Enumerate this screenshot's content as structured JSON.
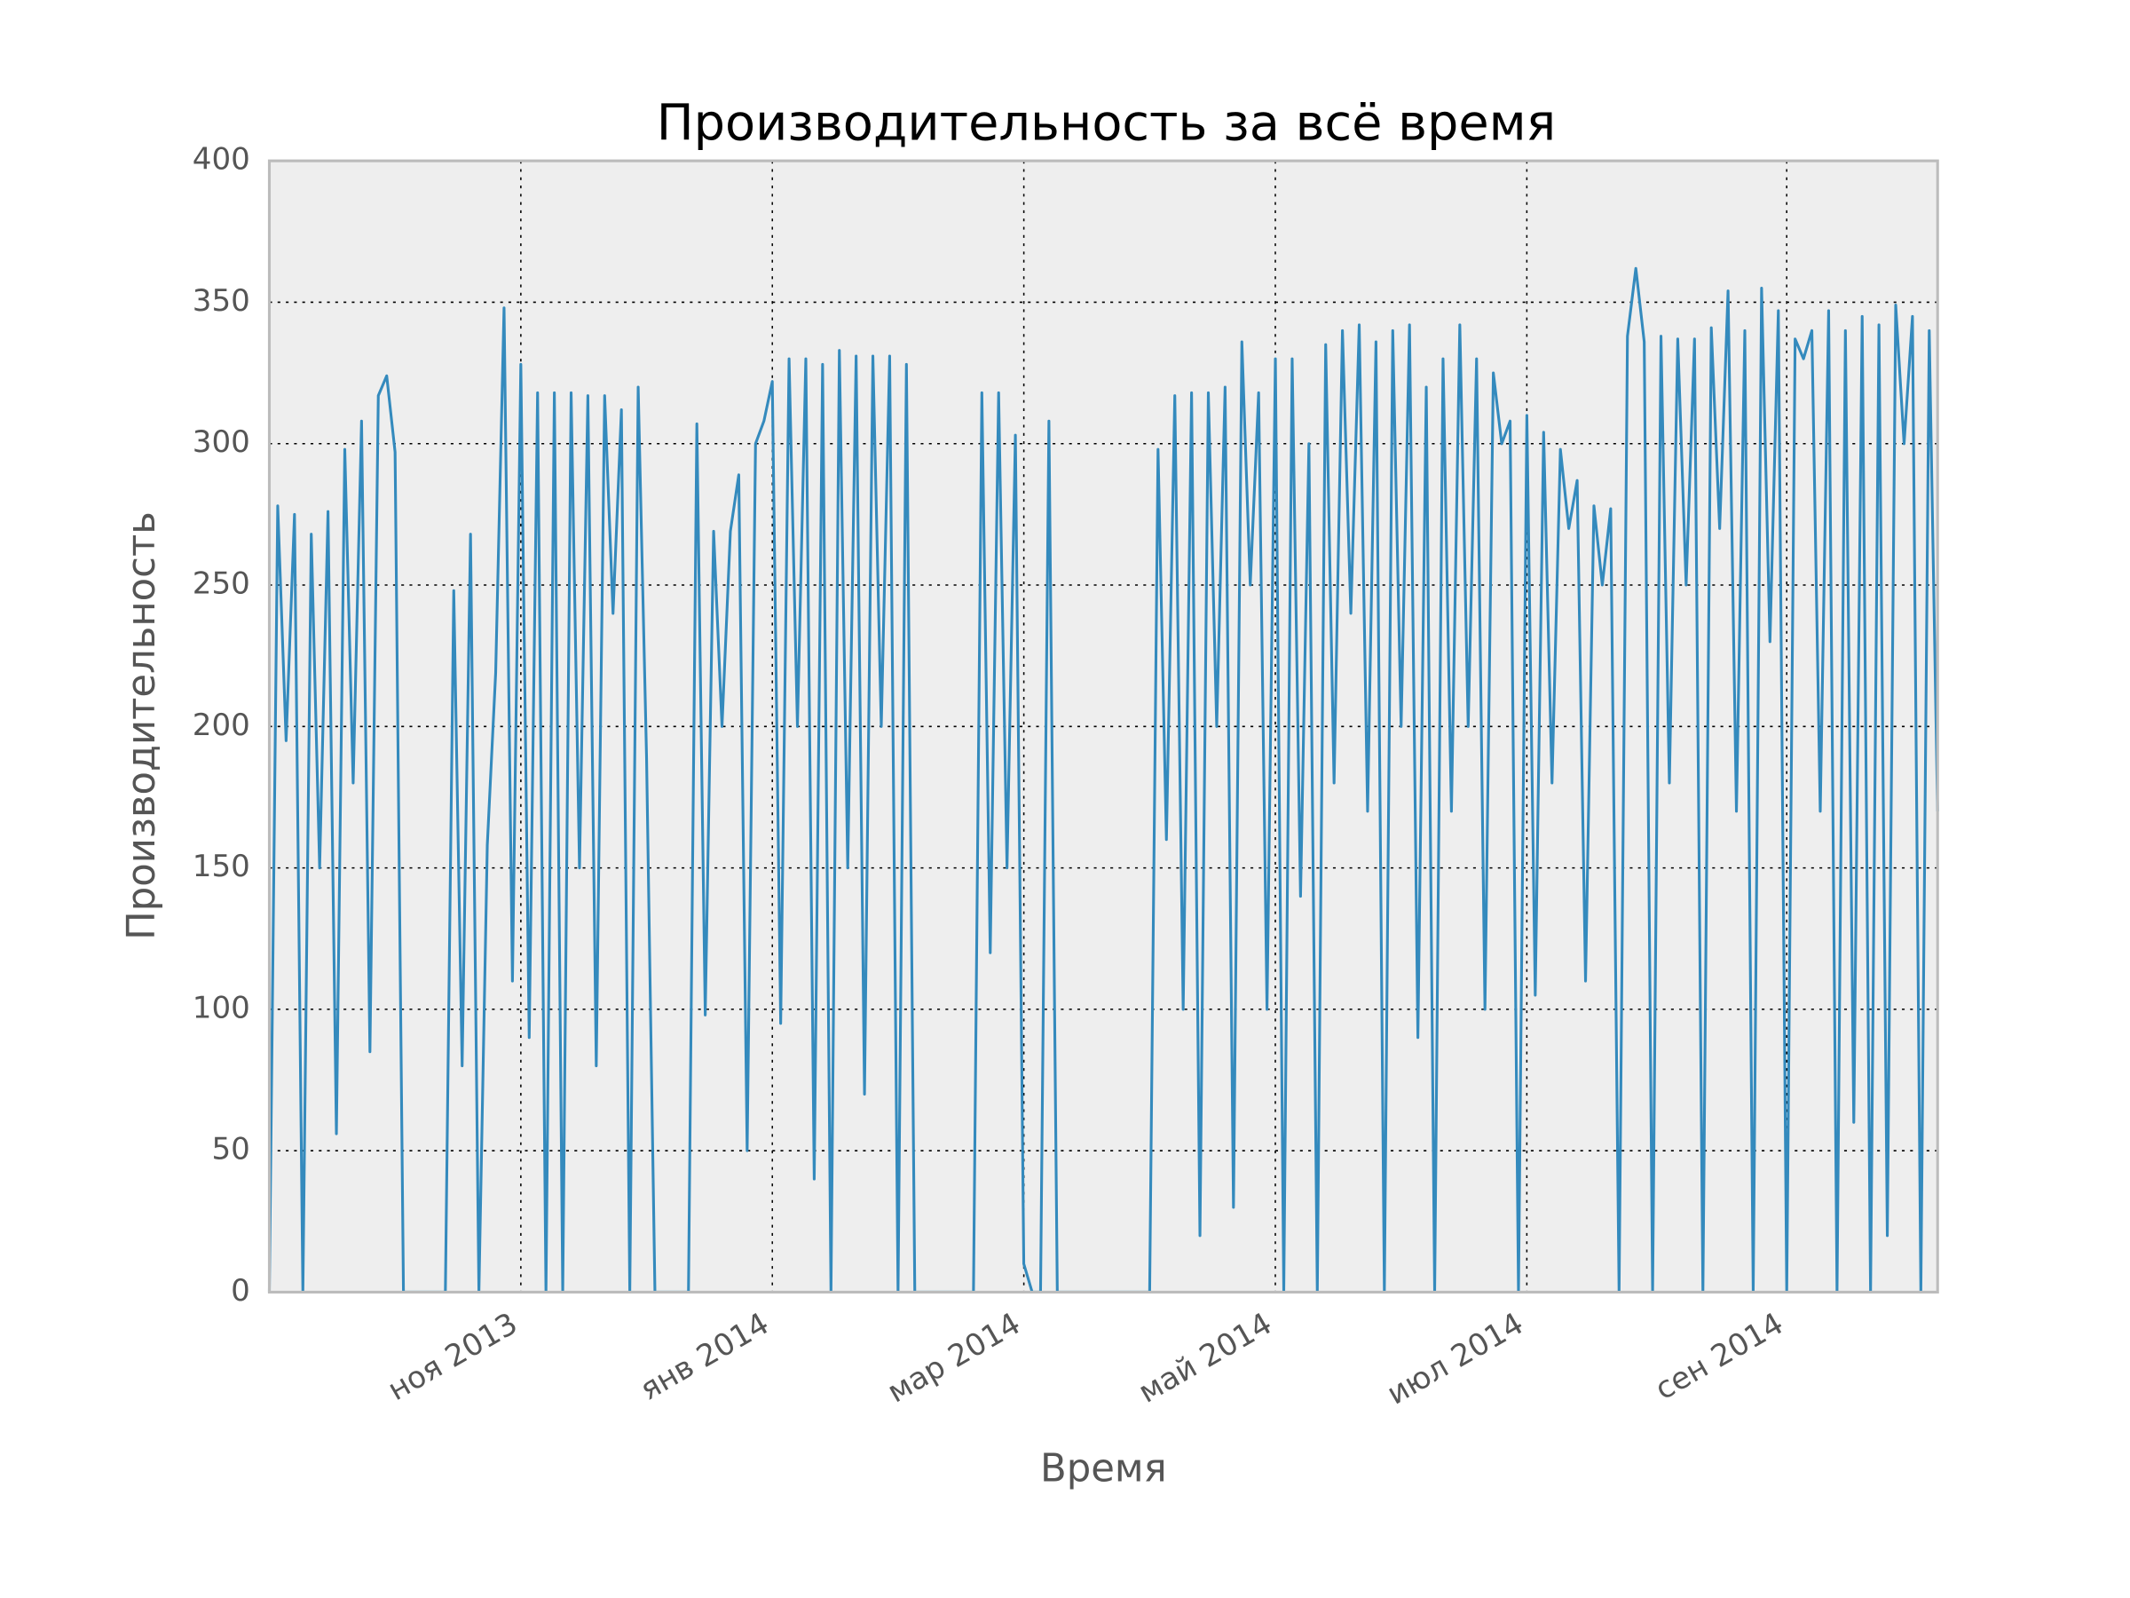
{
  "chart_data": {
    "type": "line",
    "title": "Производительность за всё время",
    "x_label": "Время",
    "y_label": "Производительность",
    "color": "#348abd",
    "grid": true,
    "ylim": [
      0,
      400
    ],
    "yticks": [
      0,
      50,
      100,
      150,
      200,
      250,
      300,
      350,
      400
    ],
    "categories": [
      null,
      null,
      null,
      null,
      null,
      null,
      null,
      null,
      null,
      null,
      null,
      null,
      null,
      null,
      null,
      null,
      null,
      null,
      null,
      null,
      null,
      null,
      null,
      null,
      null,
      null,
      null,
      null,
      null,
      null,
      "ноя 2013",
      null,
      null,
      null,
      null,
      null,
      null,
      null,
      null,
      null,
      null,
      null,
      null,
      null,
      null,
      null,
      null,
      null,
      null,
      null,
      null,
      null,
      null,
      null,
      null,
      null,
      null,
      null,
      null,
      null,
      "янв 2014",
      null,
      null,
      null,
      null,
      null,
      null,
      null,
      null,
      null,
      null,
      null,
      null,
      null,
      null,
      null,
      null,
      null,
      null,
      null,
      null,
      null,
      null,
      null,
      null,
      null,
      null,
      null,
      null,
      null,
      "мар 2014",
      null,
      null,
      null,
      null,
      null,
      null,
      null,
      null,
      null,
      null,
      null,
      null,
      null,
      null,
      null,
      null,
      null,
      null,
      null,
      null,
      null,
      null,
      null,
      null,
      null,
      null,
      null,
      null,
      null,
      "май 2014",
      null,
      null,
      null,
      null,
      null,
      null,
      null,
      null,
      null,
      null,
      null,
      null,
      null,
      null,
      null,
      null,
      null,
      null,
      null,
      null,
      null,
      null,
      null,
      null,
      null,
      null,
      null,
      null,
      null,
      "июл 2014",
      null,
      null,
      null,
      null,
      null,
      null,
      null,
      null,
      null,
      null,
      null,
      null,
      null,
      null,
      null,
      null,
      null,
      null,
      null,
      null,
      null,
      null,
      null,
      null,
      null,
      null,
      null,
      null,
      null,
      null,
      "сен 2014",
      null,
      null,
      null,
      null,
      null,
      null,
      null,
      null,
      null,
      null,
      null,
      null,
      null,
      null,
      null,
      null,
      null,
      null
    ],
    "values": [
      0,
      278,
      195,
      275,
      0,
      268,
      150,
      276,
      56,
      298,
      180,
      308,
      85,
      317,
      324,
      297,
      0,
      0,
      0,
      0,
      0,
      0,
      248,
      80,
      268,
      0,
      158,
      219,
      348,
      110,
      328,
      90,
      318,
      0,
      318,
      0,
      318,
      150,
      317,
      80,
      317,
      240,
      312,
      0,
      320,
      189,
      0,
      0,
      0,
      0,
      0,
      307,
      98,
      269,
      200,
      269,
      289,
      50,
      300,
      308,
      322,
      95,
      330,
      200,
      330,
      40,
      328,
      0,
      333,
      150,
      331,
      70,
      331,
      200,
      331,
      0,
      328,
      0,
      0,
      0,
      0,
      0,
      0,
      0,
      0,
      318,
      120,
      318,
      150,
      303,
      10,
      0,
      0,
      308,
      0,
      0,
      0,
      0,
      0,
      0,
      0,
      0,
      0,
      0,
      0,
      0,
      298,
      160,
      317,
      100,
      318,
      20,
      318,
      200,
      320,
      30,
      336,
      250,
      318,
      100,
      330,
      0,
      330,
      140,
      300,
      0,
      335,
      180,
      340,
      240,
      342,
      170,
      336,
      0,
      340,
      200,
      342,
      90,
      320,
      0,
      330,
      170,
      342,
      200,
      330,
      100,
      325,
      300,
      308,
      0,
      310,
      105,
      304,
      180,
      298,
      270,
      287,
      110,
      278,
      250,
      277,
      0,
      338,
      362,
      336,
      0,
      338,
      180,
      337,
      250,
      337,
      0,
      341,
      270,
      354,
      170,
      340,
      0,
      355,
      230,
      347,
      0,
      337,
      330,
      340,
      170,
      347,
      0,
      340,
      60,
      345,
      0,
      342,
      20,
      349,
      300,
      345,
      0,
      340,
      170
    ]
  }
}
